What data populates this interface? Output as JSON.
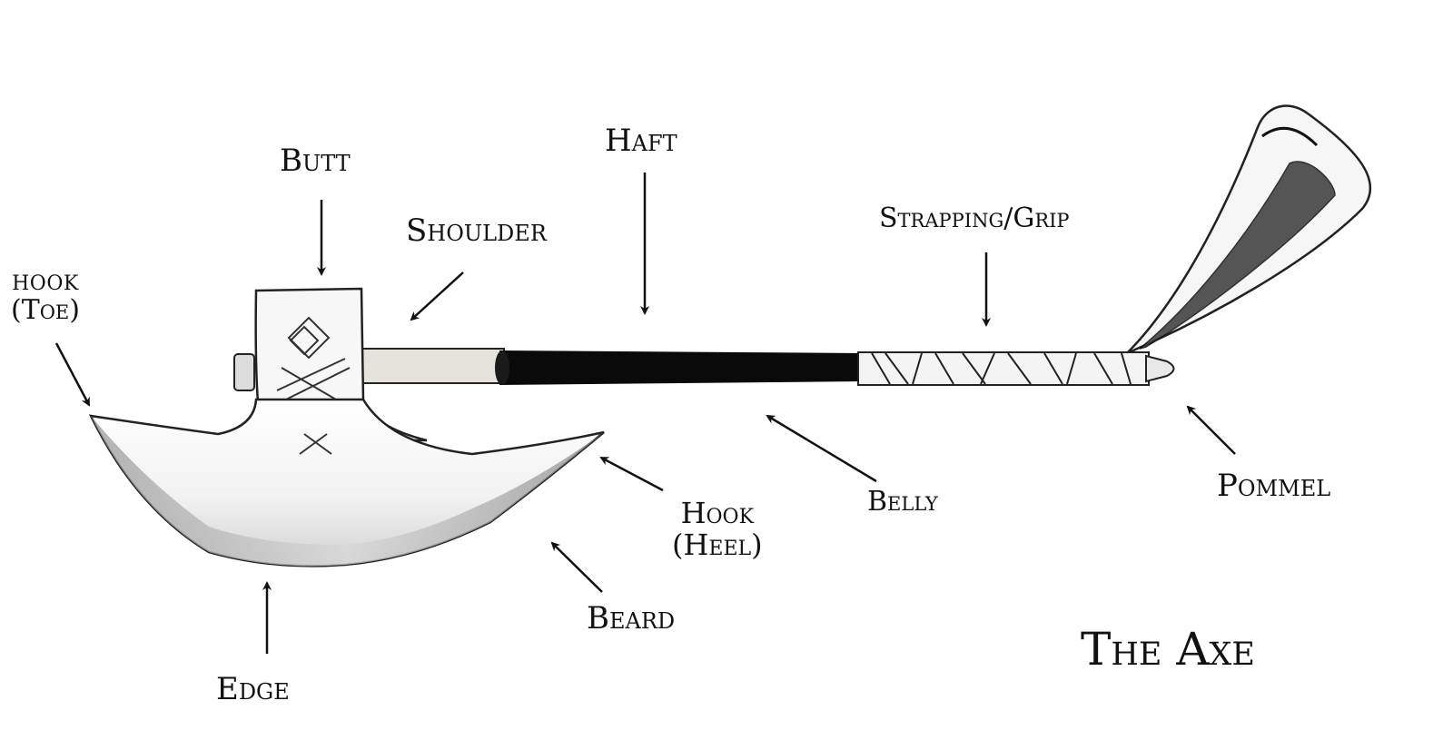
{
  "title": "The Axe",
  "colors": {
    "ink": "#111111",
    "background": "#ffffff",
    "haft_dark": "#0a0a0a",
    "haft_light": "#e6e3dd",
    "blade": "#eeeeee"
  },
  "labels": {
    "butt": "Butt",
    "haft": "Haft",
    "shoulder": "Shoulder",
    "strapping_grip": "Strapping/Grip",
    "hook_toe_line1": "HOOK",
    "hook_toe_line2": "(Toe)",
    "hook_heel_line1": "Hook",
    "hook_heel_line2": "(Heel)",
    "belly": "Belly",
    "pommel": "Pommel",
    "beard": "Beard",
    "edge": "Edge"
  }
}
